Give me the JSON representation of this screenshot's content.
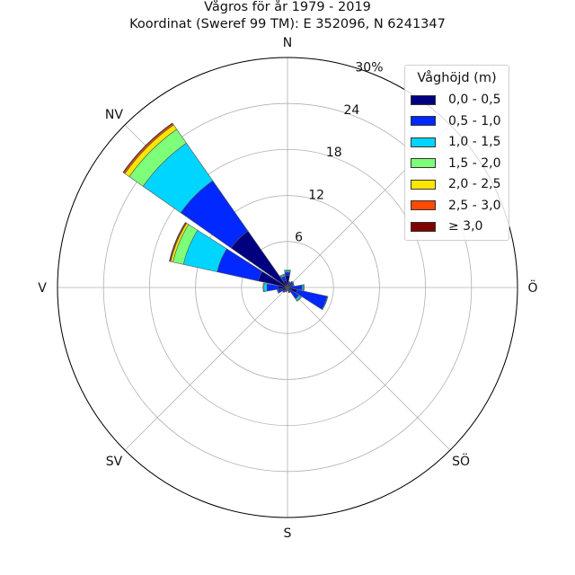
{
  "title_line1": "Vågros för år 1979 - 2019",
  "title_line2": "Koordinat (Sweref 99 TM): E 352096, N 6241347",
  "chart_data": {
    "type": "polar-stacked-bar",
    "title": "Vågros för år 1979 - 2019",
    "subtitle": "Koordinat (Sweref 99 TM): E 352096, N 6241347",
    "directions": [
      "N",
      "NNÖ",
      "NÖ",
      "ÖNÖ",
      "Ö",
      "ÖSÖ",
      "SÖ",
      "SSÖ",
      "S",
      "SSV",
      "SV",
      "VSV",
      "V",
      "VNV",
      "NV",
      "NNV"
    ],
    "direction_degrees": [
      0,
      22.5,
      45,
      67.5,
      90,
      112.5,
      135,
      157.5,
      180,
      202.5,
      225,
      247.5,
      270,
      292.5,
      315,
      337.5
    ],
    "compass_labels": [
      {
        "text": "N",
        "deg": 0
      },
      {
        "text": "Ö",
        "deg": 90
      },
      {
        "text": "SÖ",
        "deg": 135
      },
      {
        "text": "S",
        "deg": 180
      },
      {
        "text": "SV",
        "deg": 225
      },
      {
        "text": "V",
        "deg": 270
      },
      {
        "text": "NV",
        "deg": 315
      }
    ],
    "radial_ticks": [
      "6",
      "12",
      "18",
      "24",
      "30%"
    ],
    "radial_tick_values": [
      6,
      12,
      18,
      24,
      30
    ],
    "r_max": 30,
    "legend_title": "Våghöjd (m)",
    "series": [
      {
        "name": "0,0 - 0,5",
        "color": "#000080",
        "values": [
          1.6,
          0.5,
          0.5,
          0.4,
          0.5,
          1.3,
          0.5,
          0.4,
          0.2,
          0.3,
          0.5,
          0.7,
          1.2,
          3.9,
          9.0,
          0.9
        ]
      },
      {
        "name": "0,5 - 1,0",
        "color": "#0028ff",
        "values": [
          0.4,
          0.2,
          0.4,
          0.4,
          1.4,
          4.0,
          1.3,
          0.3,
          0.2,
          0.3,
          0.3,
          0.6,
          1.5,
          5.5,
          8.0,
          0.6
        ]
      },
      {
        "name": "1,0 - 1,5",
        "color": "#00d5ff",
        "values": [
          0.2,
          0.1,
          0.1,
          0.1,
          0.2,
          0.1,
          0.3,
          0.0,
          0.0,
          0.0,
          0.0,
          0.1,
          0.4,
          4.5,
          6.0,
          0.2
        ]
      },
      {
        "name": "1,5 - 2,0",
        "color": "#7dff7a",
        "values": [
          0.1,
          0.0,
          0.0,
          0.0,
          0.1,
          0.0,
          0.1,
          0.0,
          0.0,
          0.0,
          0.0,
          0.0,
          0.1,
          1.4,
          2.2,
          0.1
        ]
      },
      {
        "name": "2,0 - 2,5",
        "color": "#ffe600",
        "values": [
          0.0,
          0.0,
          0.0,
          0.0,
          0.0,
          0.0,
          0.0,
          0.0,
          0.0,
          0.0,
          0.0,
          0.0,
          0.0,
          0.3,
          0.7,
          0.0
        ]
      },
      {
        "name": "2,5 - 3,0",
        "color": "#ff4a00",
        "values": [
          0.0,
          0.0,
          0.0,
          0.0,
          0.0,
          0.0,
          0.0,
          0.0,
          0.0,
          0.0,
          0.0,
          0.0,
          0.0,
          0.1,
          0.2,
          0.0
        ]
      },
      {
        "name": "≥ 3,0",
        "color": "#800000",
        "values": [
          0.0,
          0.0,
          0.0,
          0.0,
          0.0,
          0.0,
          0.0,
          0.0,
          0.0,
          0.0,
          0.0,
          0.0,
          0.0,
          0.1,
          0.1,
          0.0
        ]
      }
    ],
    "grid": true,
    "legend_position": "top-right"
  }
}
